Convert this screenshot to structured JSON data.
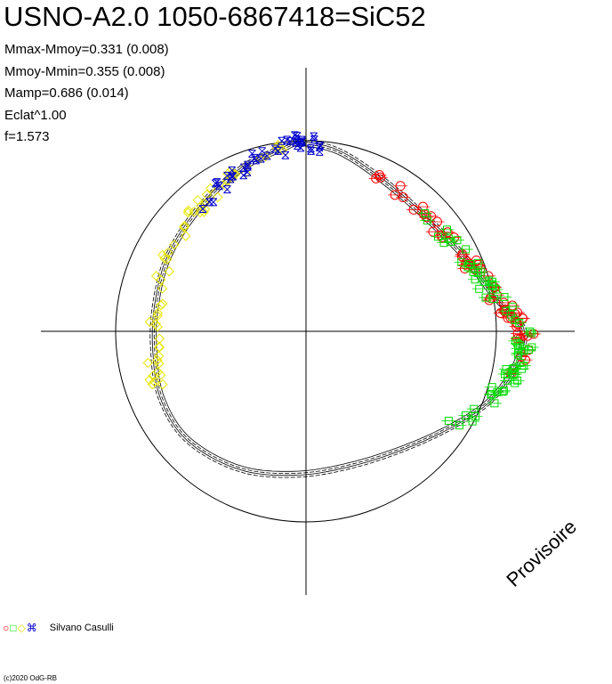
{
  "title": "USNO-A2.0 1050-6867418=SiC52",
  "stats": [
    "Mmax-Mmoy=0.331 (0.008)",
    "Mmoy-Mmin=0.355 (0.008)",
    "Mamp=0.686 (0.014)",
    "Eclat^1.00",
    "f=1.573"
  ],
  "watermark": "Provisoire",
  "observer": "Silvano Casulli",
  "copyright": "(c)2020 OdG-RB",
  "legend_symbols": [
    {
      "glyph": "○",
      "color": "#ff0000"
    },
    {
      "glyph": "□",
      "color": "#00dd00"
    },
    {
      "glyph": "◇",
      "color": "#e6e600"
    },
    {
      "glyph": "⌘",
      "color": "#0000cc"
    }
  ],
  "chart_data": {
    "type": "scatter",
    "projection": "polar",
    "reference_circle_radius": 1.0,
    "axes": "cross through center",
    "grid": false,
    "fitted_curve": {
      "description": "light curve envelope",
      "points": [
        [
          -0.02,
          0.99
        ],
        [
          0.18,
          0.94
        ],
        [
          0.42,
          0.78
        ],
        [
          0.66,
          0.57
        ],
        [
          0.85,
          0.37
        ],
        [
          1.0,
          0.17
        ],
        [
          1.14,
          0.01
        ],
        [
          1.1,
          -0.18
        ],
        [
          0.98,
          -0.35
        ],
        [
          0.8,
          -0.48
        ],
        [
          0.55,
          -0.6
        ],
        [
          0.25,
          -0.7
        ],
        [
          -0.05,
          -0.75
        ],
        [
          -0.35,
          -0.72
        ],
        [
          -0.62,
          -0.57
        ],
        [
          -0.76,
          -0.35
        ],
        [
          -0.8,
          -0.1
        ],
        [
          -0.79,
          0.14
        ],
        [
          -0.72,
          0.4
        ],
        [
          -0.55,
          0.66
        ],
        [
          -0.33,
          0.86
        ],
        [
          -0.1,
          0.97
        ],
        [
          -0.02,
          0.99
        ]
      ],
      "offsets": [
        -0.016,
        -0.005,
        0.005,
        0.016
      ]
    },
    "series": [
      {
        "marker": "circle",
        "color": "#ff0000",
        "t_range": [
          0.08,
          0.33
        ],
        "count": 60
      },
      {
        "marker": "square",
        "color": "#00dd00",
        "t_range": [
          0.12,
          0.42
        ],
        "count": 70
      },
      {
        "marker": "diamond",
        "color": "#e6e600",
        "t_range": [
          0.69,
          0.95
        ],
        "count": 60
      },
      {
        "marker": "x",
        "color": "#0000cc",
        "t_range": [
          0.86,
          1.03
        ],
        "count": 45
      }
    ]
  }
}
